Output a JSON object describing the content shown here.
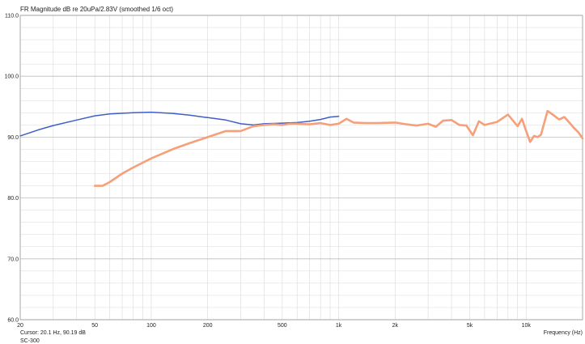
{
  "chart_data": {
    "type": "line",
    "title": "FR Magnitude dB re 20uPa/2.83V (smoothed 1/6 oct)",
    "xlabel": "Frequency (Hz)",
    "ylabel": "",
    "xscale": "log",
    "xlim": [
      20,
      20000
    ],
    "ylim": [
      60,
      110
    ],
    "grid": true,
    "xtick_labels": [
      "20",
      "50",
      "100",
      "200",
      "500",
      "1k",
      "2k",
      "5k",
      "10k"
    ],
    "xtick_values": [
      20,
      50,
      100,
      200,
      500,
      1000,
      2000,
      5000,
      10000
    ],
    "ytick_labels": [
      "110.0",
      "100.0",
      "90.0",
      "80.0",
      "70.0",
      "60.0"
    ],
    "ytick_values": [
      110,
      100,
      90,
      80,
      70,
      60
    ],
    "colors": {
      "series_blue": "#3f5fc4",
      "series_orange": "#f5a07a",
      "grid": "#d9d9d9",
      "axis": "#999999"
    },
    "series": [
      {
        "color": "#3f5fc4",
        "x": [
          20,
          25,
          30,
          40,
          50,
          60,
          80,
          100,
          130,
          160,
          200,
          250,
          300,
          350,
          400,
          500,
          600,
          700,
          800,
          900,
          1000
        ],
        "y": [
          90.2,
          91.2,
          91.9,
          92.8,
          93.5,
          93.8,
          94.0,
          94.1,
          93.9,
          93.6,
          93.2,
          92.8,
          92.2,
          92.0,
          92.2,
          92.3,
          92.4,
          92.6,
          92.9,
          93.3,
          93.4
        ]
      },
      {
        "color": "#f5a07a",
        "x": [
          50,
          55,
          60,
          70,
          80,
          100,
          130,
          160,
          200,
          250,
          300,
          350,
          400,
          450,
          500,
          550,
          600,
          700,
          800,
          900,
          1000,
          1100,
          1200,
          1400,
          1600,
          2000,
          2300,
          2600,
          3000,
          3300,
          3600,
          4000,
          4400,
          4800,
          5200,
          5600,
          6000,
          7000,
          8000,
          9000,
          9500,
          10000,
          10500,
          11000,
          11500,
          12000,
          13000,
          14000,
          15000,
          16000,
          17000,
          18000,
          19000,
          20000
        ],
        "y": [
          82.0,
          82.0,
          82.6,
          84.0,
          85.0,
          86.5,
          88.0,
          89.0,
          90.0,
          91.0,
          91.0,
          91.8,
          92.0,
          92.1,
          92.0,
          92.2,
          92.2,
          92.1,
          92.3,
          92.0,
          92.2,
          93.0,
          92.4,
          92.3,
          92.3,
          92.4,
          92.1,
          91.9,
          92.2,
          91.7,
          92.7,
          92.8,
          92.0,
          91.9,
          90.3,
          92.6,
          92.0,
          92.5,
          93.7,
          91.8,
          93.0,
          91.0,
          89.2,
          90.2,
          90.0,
          90.4,
          94.3,
          93.6,
          92.9,
          93.3,
          92.4,
          91.5,
          90.8,
          89.8
        ]
      }
    ]
  },
  "cursor_text": "Cursor: 20.1 Hz, 90.19 dB",
  "model_text": "SC-300"
}
